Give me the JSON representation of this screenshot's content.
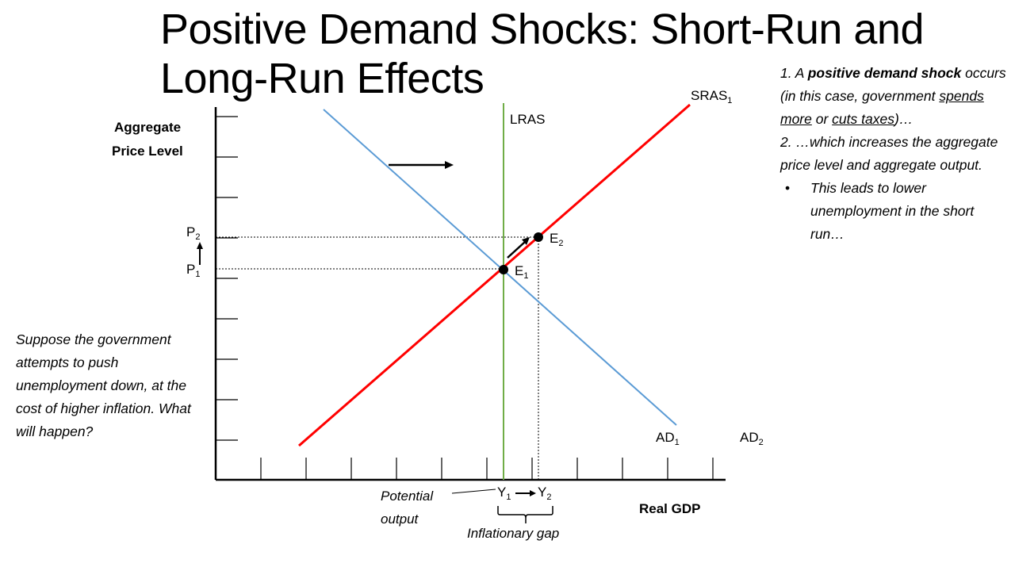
{
  "title": {
    "line1": "Positive Demand Shocks: Short-Run and",
    "line2": "Long-Run Effects"
  },
  "axes": {
    "y_label_line1": "Aggregate",
    "y_label_line2": "Price Level",
    "x_label": "Real GDP"
  },
  "curves": {
    "lras": "LRAS",
    "sras": "SRAS",
    "sras_sub": "1",
    "ad1": "AD",
    "ad1_sub": "1",
    "ad2": "AD",
    "ad2_sub": "2"
  },
  "points": {
    "e1": "E",
    "e1_sub": "1",
    "e2": "E",
    "e2_sub": "2",
    "p1": "P",
    "p1_sub": "1",
    "p2": "P",
    "p2_sub": "2",
    "y1": "Y",
    "y1_sub": "1",
    "y2": "Y",
    "y2_sub": "2"
  },
  "annotations": {
    "potential_line1": "Potential",
    "potential_line2": "output",
    "gap": "Inflationary gap"
  },
  "notes": {
    "n1_a": "1. A ",
    "n1_b": "positive demand shock",
    "n1_c": " occurs (in this case, government ",
    "n1_d": "spends more",
    "n1_e": " or ",
    "n1_f": "cuts taxes",
    "n1_g": ")…",
    "n2": "2. …which increases the aggregate price level and aggregate output.",
    "bullet": "This leads to lower unemployment in the short run…"
  },
  "left_note": "Suppose the government attempts to push unemployment down, at the cost of higher inflation.  What will happen?",
  "colors": {
    "ad": "#5b9bd5",
    "sras": "#ff0000",
    "lras": "#70ad47",
    "axis": "#000000"
  }
}
